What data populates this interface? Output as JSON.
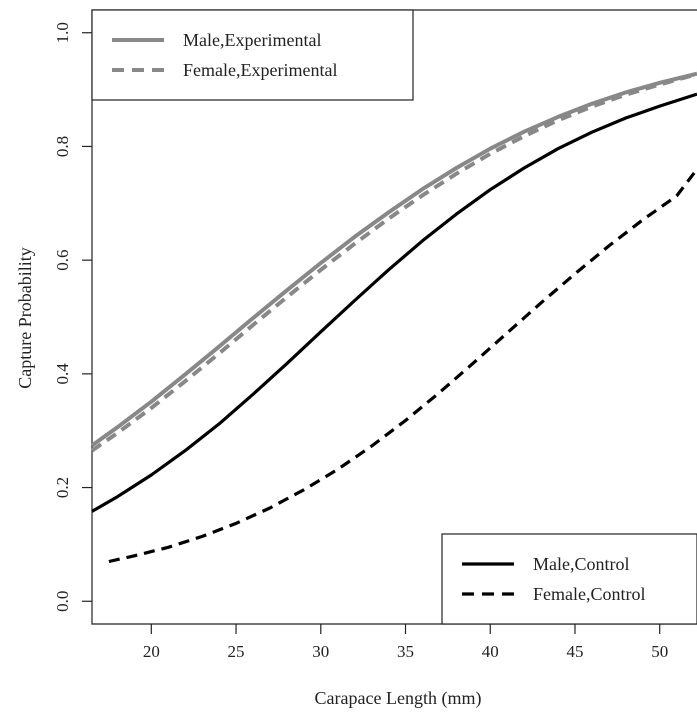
{
  "chart_data": {
    "type": "line",
    "title": "",
    "xlabel": "Carapace Length (mm)",
    "ylabel": "Capture Probability",
    "xlim": [
      16.5,
      52.2
    ],
    "ylim": [
      -0.04,
      1.04
    ],
    "xticks": [
      20,
      25,
      30,
      35,
      40,
      45,
      50
    ],
    "xtick_labels": [
      "20",
      "25",
      "30",
      "35",
      "40",
      "45",
      "50"
    ],
    "yticks": [
      0.0,
      0.2,
      0.4,
      0.6,
      0.8,
      1.0
    ],
    "ytick_labels": [
      "0.0",
      "0.2",
      "0.4",
      "0.6",
      "0.8",
      "1.0"
    ],
    "grid": false,
    "series": [
      {
        "name": "Male,Experimental",
        "color": "#888888",
        "dash": "solid",
        "legend": "top-left",
        "x": [
          16.5,
          18,
          20,
          22,
          24,
          26,
          28,
          30,
          32,
          34,
          36,
          38,
          40,
          42,
          44,
          46,
          48,
          50,
          52.2
        ],
        "y": [
          0.274,
          0.306,
          0.351,
          0.399,
          0.448,
          0.498,
          0.547,
          0.595,
          0.641,
          0.684,
          0.725,
          0.762,
          0.796,
          0.826,
          0.852,
          0.875,
          0.895,
          0.912,
          0.928
        ]
      },
      {
        "name": "Female,Experimental",
        "color": "#888888",
        "dash": "dashed",
        "legend": "top-left",
        "x": [
          16.5,
          18,
          20,
          22,
          24,
          26,
          28,
          30,
          32,
          34,
          36,
          38,
          40,
          42,
          44,
          46,
          48,
          50,
          52.2
        ],
        "y": [
          0.265,
          0.296,
          0.34,
          0.387,
          0.436,
          0.486,
          0.535,
          0.583,
          0.629,
          0.673,
          0.714,
          0.752,
          0.787,
          0.818,
          0.846,
          0.87,
          0.891,
          0.909,
          0.927
        ]
      },
      {
        "name": "Male,Control",
        "color": "#000000",
        "dash": "solid",
        "legend": "bottom-right",
        "x": [
          16.5,
          18,
          20,
          22,
          24,
          26,
          28,
          30,
          32,
          34,
          36,
          38,
          40,
          42,
          44,
          46,
          48,
          50,
          52.2
        ],
        "y": [
          0.158,
          0.184,
          0.222,
          0.265,
          0.312,
          0.364,
          0.418,
          0.474,
          0.529,
          0.583,
          0.634,
          0.681,
          0.724,
          0.762,
          0.796,
          0.825,
          0.85,
          0.871,
          0.892
        ]
      },
      {
        "name": "Female,Control",
        "color": "#000000",
        "dash": "dashed",
        "legend": "bottom-right",
        "x": [
          17.5,
          19,
          21,
          23,
          25,
          27,
          29,
          31,
          33,
          35,
          37,
          39,
          41,
          43,
          45,
          47,
          49,
          51,
          52.2
        ],
        "y": [
          0.07,
          0.08,
          0.095,
          0.114,
          0.137,
          0.164,
          0.196,
          0.232,
          0.273,
          0.318,
          0.367,
          0.419,
          0.472,
          0.525,
          0.576,
          0.625,
          0.671,
          0.713,
          0.76
        ]
      }
    ],
    "legends": [
      {
        "position": "top-left",
        "entries": [
          "Male,Experimental",
          "Female,Experimental"
        ]
      },
      {
        "position": "bottom-right",
        "entries": [
          "Male,Control",
          "Female,Control"
        ]
      }
    ]
  }
}
